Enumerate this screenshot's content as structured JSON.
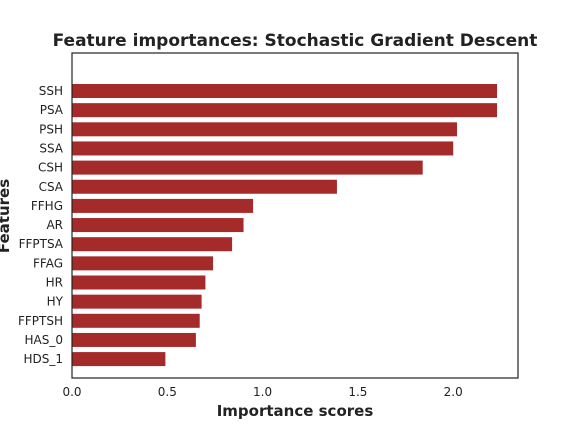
{
  "chart_data": {
    "type": "bar",
    "orientation": "horizontal",
    "title": "Feature importances: Stochastic Gradient Descent",
    "xlabel": "Importance scores",
    "ylabel": "Features",
    "categories": [
      "SSH",
      "PSA",
      "PSH",
      "SSA",
      "CSH",
      "CSA",
      "FFHG",
      "AR",
      "FFPTSA",
      "FFAG",
      "HR",
      "HY",
      "FFPTSH",
      "HAS_0",
      "HDS_1"
    ],
    "values": [
      2.23,
      2.23,
      2.02,
      2.0,
      1.84,
      1.39,
      0.95,
      0.9,
      0.84,
      0.74,
      0.7,
      0.68,
      0.67,
      0.65,
      0.49
    ],
    "xlim": [
      0.0,
      2.34
    ],
    "xticks": [
      "0.0",
      "0.5",
      "1.0",
      "1.5",
      "2.0"
    ],
    "bar_color": "#a52a2a",
    "grid": false,
    "legend": "none"
  }
}
